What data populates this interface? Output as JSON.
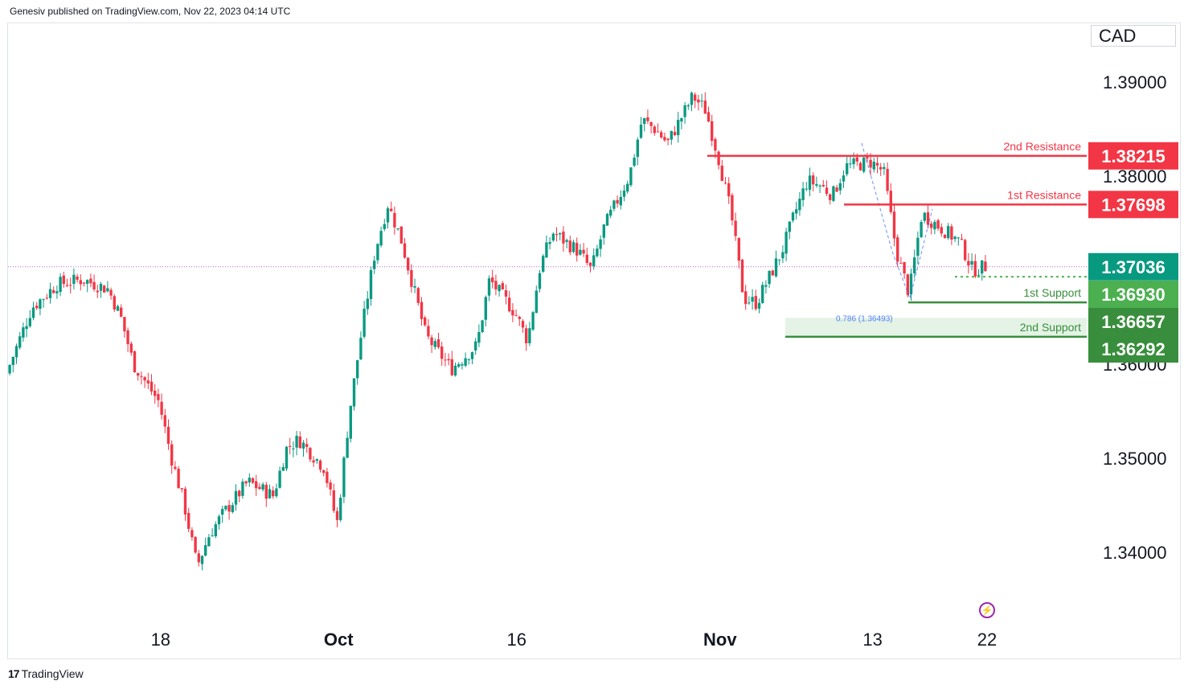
{
  "header": {
    "published_by": "Genesiv published on TradingView.com, Nov 22, 2023 04:14 UTC"
  },
  "currency": "CAD",
  "footer": {
    "brand": "TradingView",
    "logo_glyph": "17"
  },
  "colors": {
    "bull": "#089981",
    "bear": "#f23645",
    "resistance": "#f23645",
    "support_light": "#4caf50",
    "support_dark": "#388e3c",
    "current_price": "#089981",
    "bolt": "#9c27b0"
  },
  "chart_data": {
    "type": "candlestick",
    "symbol_quote": "CAD",
    "ylim": [
      1.332,
      1.4
    ],
    "y_ticks": [
      "1.34000",
      "1.35000",
      "1.36000",
      "1.38000",
      "1.39000"
    ],
    "y_tick_values": [
      1.34,
      1.35,
      1.36,
      1.38,
      1.39
    ],
    "x_ticks": [
      "18",
      "Oct",
      "16",
      "Nov",
      "13",
      "22"
    ],
    "x_tick_dates": [
      "2023-09-18",
      "2023-10-02",
      "2023-10-16",
      "2023-11-01",
      "2023-11-13",
      "2023-11-22"
    ],
    "date_range": [
      "2023-09-06",
      "2023-11-22"
    ],
    "levels": [
      {
        "name": "2nd Resistance",
        "value": "1.38215",
        "kind": "resistance"
      },
      {
        "name": "1st Resistance",
        "value": "1.37698",
        "kind": "resistance"
      },
      {
        "name": "1st Support",
        "value": "1.36657",
        "kind": "support"
      },
      {
        "name": "2nd Support",
        "value": "1.36292",
        "kind": "support"
      }
    ],
    "current_price": "1.37036",
    "marker_price": "1.36930",
    "fib_label": "0.786 (1.36493)",
    "price_path": [
      [
        "2023-09-06",
        1.359
      ],
      [
        "2023-09-08",
        1.366
      ],
      [
        "2023-09-10",
        1.3685
      ],
      [
        "2023-09-12",
        1.369
      ],
      [
        "2023-09-14",
        1.368
      ],
      [
        "2023-09-15",
        1.365
      ],
      [
        "2023-09-16",
        1.36
      ],
      [
        "2023-09-18",
        1.356
      ],
      [
        "2023-09-19",
        1.35
      ],
      [
        "2023-09-20",
        1.345
      ],
      [
        "2023-09-21",
        1.3385
      ],
      [
        "2023-09-22",
        1.342
      ],
      [
        "2023-09-23",
        1.344
      ],
      [
        "2023-09-25",
        1.3475
      ],
      [
        "2023-09-27",
        1.346
      ],
      [
        "2023-09-28",
        1.351
      ],
      [
        "2023-09-29",
        1.352
      ],
      [
        "2023-10-01",
        1.349
      ],
      [
        "2023-10-02",
        1.343
      ],
      [
        "2023-10-03",
        1.355
      ],
      [
        "2023-10-04",
        1.364
      ],
      [
        "2023-10-05",
        1.372
      ],
      [
        "2023-10-06",
        1.377
      ],
      [
        "2023-10-07",
        1.3735
      ],
      [
        "2023-10-09",
        1.363
      ],
      [
        "2023-10-11",
        1.3595
      ],
      [
        "2023-10-13",
        1.362
      ],
      [
        "2023-10-14",
        1.369
      ],
      [
        "2023-10-16",
        1.3655
      ],
      [
        "2023-10-17",
        1.3625
      ],
      [
        "2023-10-18",
        1.3705
      ],
      [
        "2023-10-19",
        1.374
      ],
      [
        "2023-10-21",
        1.372
      ],
      [
        "2023-10-22",
        1.37
      ],
      [
        "2023-10-23",
        1.3745
      ],
      [
        "2023-10-25",
        1.38
      ],
      [
        "2023-10-26",
        1.386
      ],
      [
        "2023-10-27",
        1.385
      ],
      [
        "2023-10-28",
        1.3835
      ],
      [
        "2023-10-30",
        1.3885
      ],
      [
        "2023-10-31",
        1.387
      ],
      [
        "2023-11-01",
        1.382
      ],
      [
        "2023-11-02",
        1.376
      ],
      [
        "2023-11-03",
        1.367
      ],
      [
        "2023-11-04",
        1.3665
      ],
      [
        "2023-11-06",
        1.372
      ],
      [
        "2023-11-07",
        1.376
      ],
      [
        "2023-11-08",
        1.3795
      ],
      [
        "2023-11-09",
        1.379
      ],
      [
        "2023-11-10",
        1.378
      ],
      [
        "2023-11-11",
        1.381
      ],
      [
        "2023-11-13",
        1.3815
      ],
      [
        "2023-11-14",
        1.3805
      ],
      [
        "2023-11-15",
        1.372
      ],
      [
        "2023-11-16",
        1.3675
      ],
      [
        "2023-11-17",
        1.376
      ],
      [
        "2023-11-18",
        1.375
      ],
      [
        "2023-11-20",
        1.373
      ],
      [
        "2023-11-21",
        1.37
      ],
      [
        "2023-11-22",
        1.3704
      ]
    ]
  }
}
